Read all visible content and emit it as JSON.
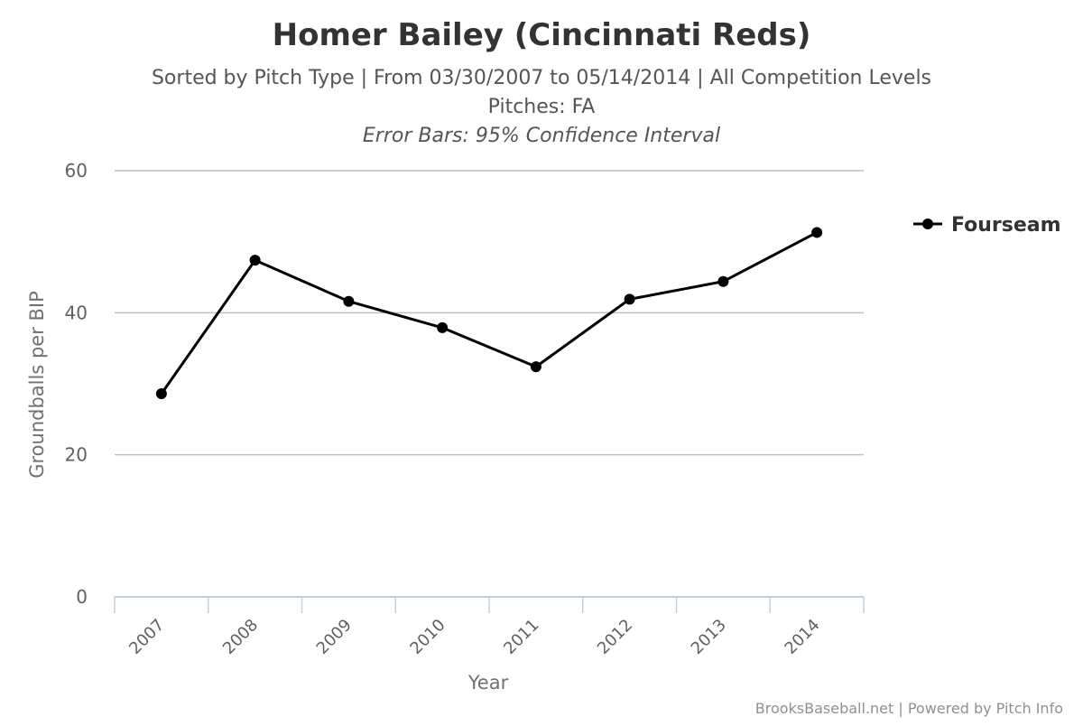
{
  "chart_data": {
    "type": "line",
    "title": "Homer Bailey (Cincinnati Reds)",
    "subtitle_lines": [
      "Sorted by Pitch Type | From 03/30/2007 to 05/14/2014 | All Competition Levels",
      "Pitches: FA"
    ],
    "subtitle_italic": "Error Bars: 95% Confidence Interval",
    "xlabel": "Year",
    "ylabel": "Groundballs per BIP",
    "categories": [
      "2007",
      "2008",
      "2009",
      "2010",
      "2011",
      "2012",
      "2013",
      "2014"
    ],
    "ylim": [
      0,
      60
    ],
    "yticks": [
      "0",
      "20",
      "40",
      "60"
    ],
    "grid": true,
    "legend_position": "top-right",
    "series": [
      {
        "name": "Fourseam",
        "color": "#000000",
        "values": [
          28.6,
          47.4,
          41.6,
          37.9,
          32.4,
          41.9,
          44.4,
          51.3
        ]
      }
    ]
  },
  "credits": "BrooksBaseball.net | Powered by Pitch Info"
}
